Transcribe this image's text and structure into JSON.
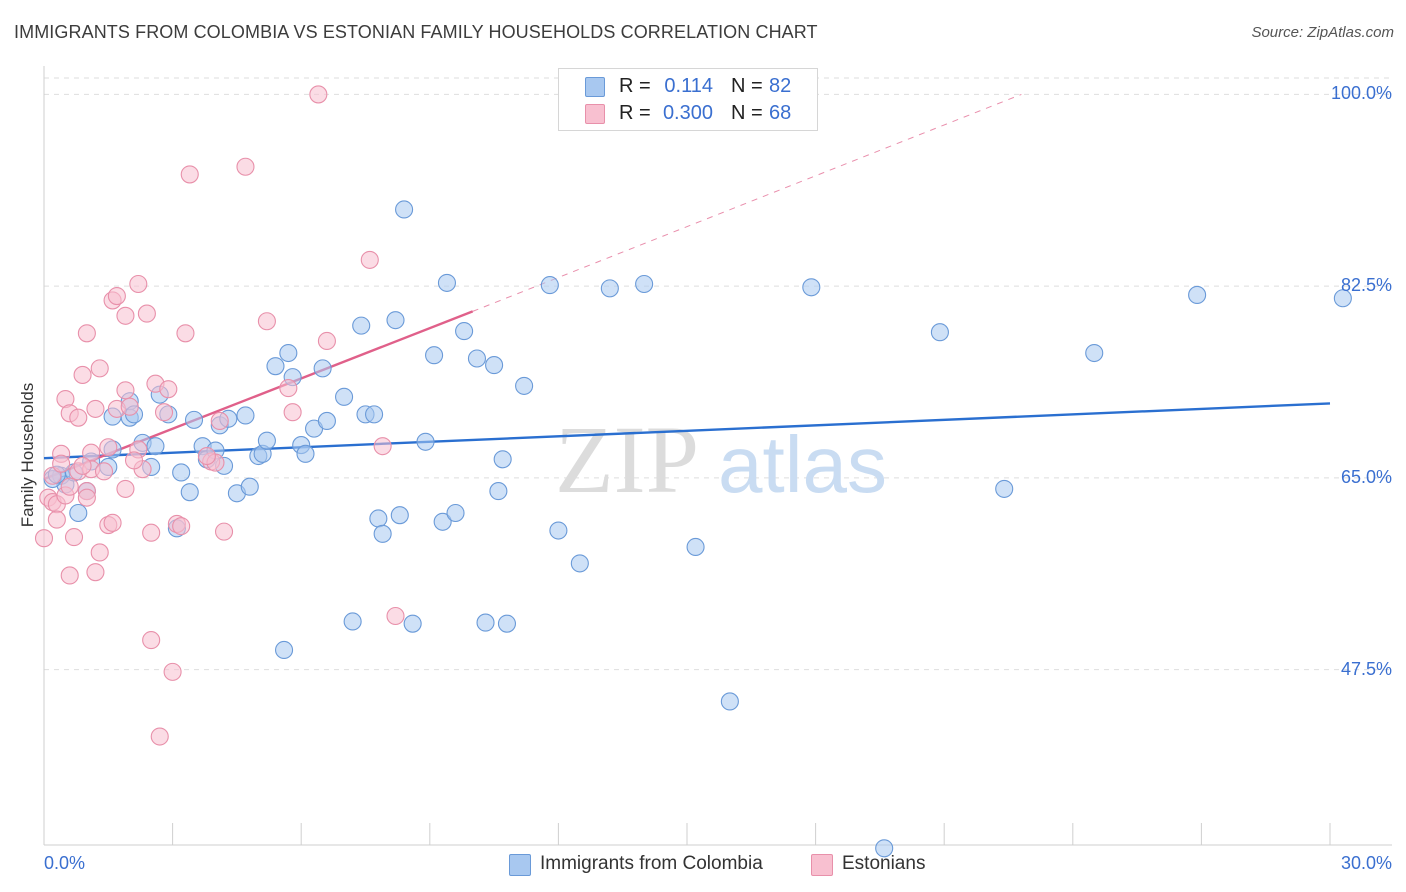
{
  "title": "IMMIGRANTS FROM COLOMBIA VS ESTONIAN FAMILY HOUSEHOLDS CORRELATION CHART",
  "source": "Source: ZipAtlas.com",
  "watermark": {
    "zip": "ZIP",
    "atlas": "atlas"
  },
  "stats": [
    {
      "r_label": "R =",
      "r_value": "0.114",
      "n_label": "N =",
      "n_value": "82",
      "color": "#a8c8f0",
      "border": "#6a9ad8"
    },
    {
      "r_label": "R =",
      "r_value": "0.300",
      "n_label": "N =",
      "n_value": "68",
      "color": "#f8c0d0",
      "border": "#e890aa"
    }
  ],
  "legend": [
    {
      "label": "Immigrants from Colombia",
      "color": "#a8c8f0",
      "border": "#6a9ad8"
    },
    {
      "label": "Estonians",
      "color": "#f8c0d0",
      "border": "#e890aa"
    }
  ],
  "chart_data": {
    "type": "scatter",
    "title": "IMMIGRANTS FROM COLOMBIA VS ESTONIAN FAMILY HOUSEHOLDS CORRELATION CHART",
    "xlabel": "",
    "ylabel": "Family Households",
    "xlim": [
      0,
      30
    ],
    "ylim": [
      31.5,
      101.5
    ],
    "x_tick_labels": [
      "0.0%",
      "30.0%"
    ],
    "y_ticks": [
      47.5,
      65.0,
      82.5,
      100.0
    ],
    "y_tick_labels": [
      "47.5%",
      "65.0%",
      "82.5%",
      "100.0%"
    ],
    "grid": true,
    "legend_position": "bottom",
    "series": [
      {
        "name": "Immigrants from Colombia",
        "color": "#6a9ad8",
        "fill": "#a8c8f0",
        "trend": {
          "x": [
            0,
            30
          ],
          "y": [
            66.8,
            71.8
          ],
          "color": "#2a6fd0"
        },
        "points": [
          [
            0.4,
            65.2
          ],
          [
            0.5,
            64.4
          ],
          [
            0.7,
            65.5
          ],
          [
            0.8,
            61.8
          ],
          [
            1.0,
            63.8
          ],
          [
            1.1,
            66.5
          ],
          [
            1.5,
            66.0
          ],
          [
            1.6,
            70.6
          ],
          [
            1.6,
            67.6
          ],
          [
            2.0,
            70.5
          ],
          [
            2.0,
            72.0
          ],
          [
            2.1,
            70.8
          ],
          [
            2.3,
            68.2
          ],
          [
            2.5,
            66.0
          ],
          [
            2.6,
            67.9
          ],
          [
            2.9,
            70.8
          ],
          [
            3.1,
            60.4
          ],
          [
            3.2,
            65.5
          ],
          [
            3.4,
            63.7
          ],
          [
            3.5,
            70.3
          ],
          [
            3.7,
            67.9
          ],
          [
            3.8,
            66.7
          ],
          [
            4.0,
            67.5
          ],
          [
            4.1,
            69.8
          ],
          [
            4.2,
            66.1
          ],
          [
            4.3,
            70.4
          ],
          [
            4.5,
            63.6
          ],
          [
            4.7,
            70.7
          ],
          [
            4.8,
            64.2
          ],
          [
            5.0,
            67.0
          ],
          [
            5.1,
            67.2
          ],
          [
            5.2,
            68.4
          ],
          [
            5.4,
            75.2
          ],
          [
            5.6,
            49.3
          ],
          [
            5.7,
            76.4
          ],
          [
            5.8,
            74.2
          ],
          [
            6.0,
            68.0
          ],
          [
            6.1,
            67.2
          ],
          [
            6.3,
            69.5
          ],
          [
            6.5,
            75.0
          ],
          [
            6.6,
            70.2
          ],
          [
            7.0,
            72.4
          ],
          [
            7.2,
            51.9
          ],
          [
            7.4,
            78.9
          ],
          [
            7.5,
            70.8
          ],
          [
            7.7,
            70.8
          ],
          [
            7.8,
            61.3
          ],
          [
            7.9,
            59.9
          ],
          [
            8.2,
            79.4
          ],
          [
            8.3,
            61.6
          ],
          [
            8.4,
            89.5
          ],
          [
            8.6,
            51.7
          ],
          [
            8.9,
            68.3
          ],
          [
            9.1,
            76.2
          ],
          [
            9.3,
            61.0
          ],
          [
            9.6,
            61.8
          ],
          [
            9.4,
            82.8
          ],
          [
            9.8,
            78.4
          ],
          [
            10.1,
            75.9
          ],
          [
            10.3,
            51.8
          ],
          [
            10.5,
            75.3
          ],
          [
            10.6,
            63.8
          ],
          [
            10.7,
            66.7
          ],
          [
            10.8,
            51.7
          ],
          [
            11.2,
            73.4
          ],
          [
            11.8,
            82.6
          ],
          [
            12.5,
            57.2
          ],
          [
            13.2,
            82.3
          ],
          [
            14.0,
            82.7
          ],
          [
            15.2,
            58.7
          ],
          [
            16.0,
            44.6
          ],
          [
            17.9,
            82.4
          ],
          [
            19.6,
            31.2
          ],
          [
            20.9,
            78.3
          ],
          [
            22.4,
            64.0
          ],
          [
            24.5,
            76.4
          ],
          [
            26.9,
            81.7
          ],
          [
            30.3,
            81.4
          ],
          [
            0.2,
            64.9
          ],
          [
            0.3,
            65.3
          ],
          [
            2.7,
            72.6
          ],
          [
            12.0,
            60.2
          ]
        ]
      },
      {
        "name": "Estonians",
        "color": "#e890aa",
        "fill": "#f8c0d0",
        "trend": {
          "x": [
            0,
            10.0
          ],
          "y": [
            64.9,
            80.2
          ],
          "color": "#e0608a",
          "dashed_extension_to": [
            22.8,
            100.0
          ]
        },
        "points": [
          [
            0.0,
            59.5
          ],
          [
            0.1,
            63.2
          ],
          [
            0.2,
            62.8
          ],
          [
            0.3,
            62.6
          ],
          [
            0.3,
            61.2
          ],
          [
            0.4,
            67.2
          ],
          [
            0.5,
            63.4
          ],
          [
            0.5,
            72.2
          ],
          [
            0.6,
            70.9
          ],
          [
            0.6,
            56.1
          ],
          [
            0.7,
            59.6
          ],
          [
            0.8,
            65.6
          ],
          [
            0.8,
            70.5
          ],
          [
            0.9,
            74.4
          ],
          [
            1.0,
            63.8
          ],
          [
            1.0,
            78.2
          ],
          [
            1.1,
            67.3
          ],
          [
            1.1,
            65.8
          ],
          [
            1.2,
            71.3
          ],
          [
            1.2,
            56.4
          ],
          [
            1.3,
            75.0
          ],
          [
            1.3,
            58.2
          ],
          [
            1.4,
            65.6
          ],
          [
            1.5,
            60.7
          ],
          [
            1.6,
            60.9
          ],
          [
            1.6,
            81.2
          ],
          [
            1.7,
            81.6
          ],
          [
            1.7,
            71.3
          ],
          [
            1.9,
            64.0
          ],
          [
            1.9,
            73.0
          ],
          [
            1.9,
            79.8
          ],
          [
            2.0,
            71.5
          ],
          [
            2.2,
            82.7
          ],
          [
            2.2,
            67.6
          ],
          [
            2.3,
            65.8
          ],
          [
            2.4,
            80.0
          ],
          [
            2.5,
            60.0
          ],
          [
            2.5,
            50.2
          ],
          [
            2.6,
            73.6
          ],
          [
            2.7,
            41.4
          ],
          [
            2.8,
            71.0
          ],
          [
            2.9,
            73.1
          ],
          [
            3.0,
            47.3
          ],
          [
            3.1,
            60.8
          ],
          [
            3.2,
            60.6
          ],
          [
            3.3,
            78.2
          ],
          [
            3.4,
            92.7
          ],
          [
            3.9,
            66.5
          ],
          [
            4.0,
            66.4
          ],
          [
            4.1,
            70.2
          ],
          [
            4.2,
            60.1
          ],
          [
            4.7,
            93.4
          ],
          [
            5.2,
            79.3
          ],
          [
            5.7,
            73.2
          ],
          [
            5.8,
            71.0
          ],
          [
            6.4,
            100.0
          ],
          [
            6.6,
            77.5
          ],
          [
            7.6,
            84.9
          ],
          [
            7.9,
            67.9
          ],
          [
            8.2,
            52.4
          ],
          [
            0.2,
            65.2
          ],
          [
            0.4,
            66.3
          ],
          [
            0.6,
            64.2
          ],
          [
            0.9,
            66.1
          ],
          [
            1.0,
            63.2
          ],
          [
            1.5,
            67.8
          ],
          [
            2.1,
            66.6
          ],
          [
            3.8,
            67.0
          ]
        ]
      }
    ]
  }
}
